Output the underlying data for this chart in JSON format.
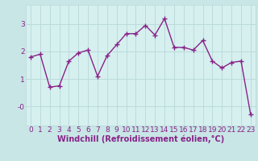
{
  "x": [
    0,
    1,
    2,
    3,
    4,
    5,
    6,
    7,
    8,
    9,
    10,
    11,
    12,
    13,
    14,
    15,
    16,
    17,
    18,
    19,
    20,
    21,
    22,
    23
  ],
  "y": [
    1.8,
    1.9,
    0.7,
    0.75,
    1.65,
    1.95,
    2.05,
    1.1,
    1.85,
    2.25,
    2.65,
    2.65,
    2.95,
    2.6,
    3.2,
    2.15,
    2.15,
    2.05,
    2.4,
    1.65,
    1.4,
    1.6,
    1.65,
    -0.3
  ],
  "line_color": "#882288",
  "marker": "+",
  "markersize": 4,
  "linewidth": 1.0,
  "bg_color": "#d6f0ef",
  "grid_color": "#b8d8d8",
  "xlabel": "Windchill (Refroidissement éolien,°C)",
  "xlabel_color": "#882288",
  "xlabel_fontsize": 7,
  "xlim": [
    -0.5,
    23.5
  ],
  "ylim": [
    -0.7,
    3.7
  ],
  "ytick_labels": [
    "-0",
    "1",
    "2",
    "3"
  ],
  "ytick_vals": [
    0,
    1,
    2,
    3
  ],
  "xtick_labels": [
    "0",
    "1",
    "2",
    "3",
    "4",
    "5",
    "6",
    "7",
    "8",
    "9",
    "10",
    "11",
    "12",
    "13",
    "14",
    "15",
    "16",
    "17",
    "18",
    "19",
    "20",
    "21",
    "22",
    "23"
  ],
  "tick_fontsize": 6.5,
  "fig_bg": "#c8e6e6"
}
